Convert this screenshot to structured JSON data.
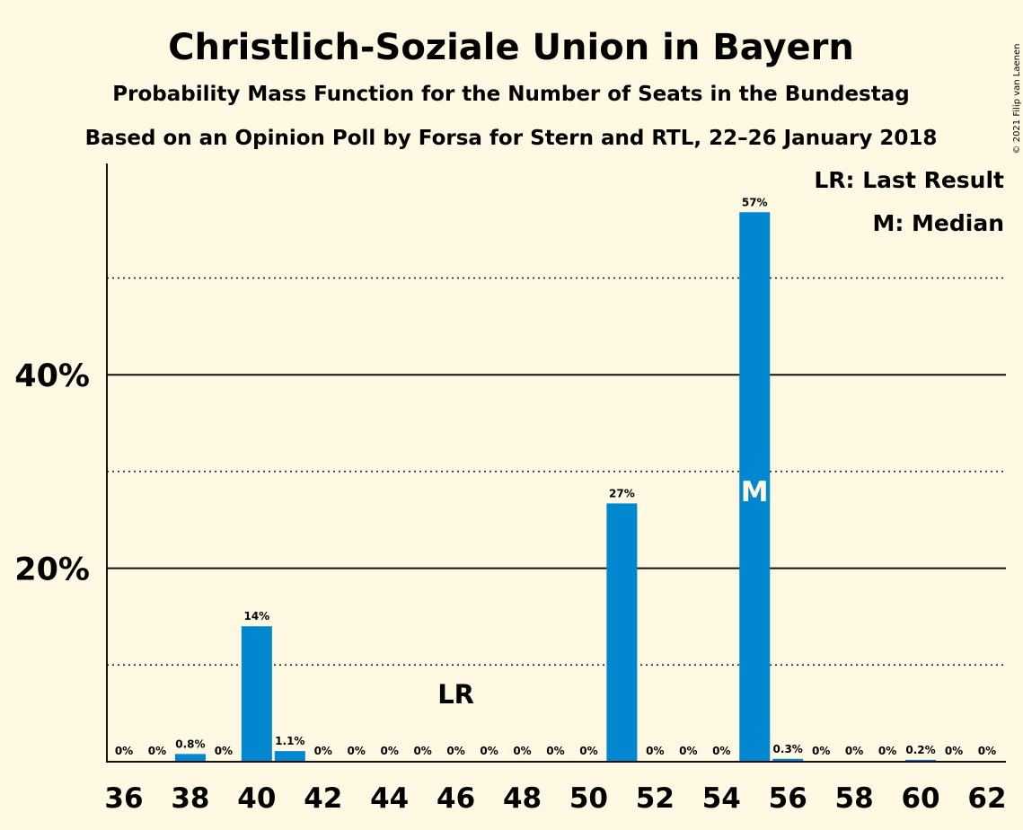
{
  "header": {
    "title": "Christlich-Soziale Union in Bayern",
    "subtitle1": "Probability Mass Function for the Number of Seats in the Bundestag",
    "subtitle2": "Based on an Opinion Poll by Forsa for Stern and RTL, 22–26 January 2018"
  },
  "legend": {
    "last_result": "LR: Last Result",
    "median": "M: Median"
  },
  "copyright": "© 2021 Filip van Laenen",
  "colors": {
    "background": "#fff8e2",
    "bar": "#0087d0",
    "text": "#111111"
  },
  "chart_data": {
    "type": "bar",
    "xlabel": "",
    "ylabel": "",
    "ylim": [
      0,
      62
    ],
    "y_ticks": [
      20,
      40
    ],
    "y_tick_labels": [
      "20%",
      "40%"
    ],
    "y_dotted_lines": [
      10,
      30,
      50
    ],
    "x_tick_labels": [
      "36",
      "38",
      "40",
      "42",
      "44",
      "46",
      "48",
      "50",
      "52",
      "54",
      "56",
      "58",
      "60",
      "62"
    ],
    "categories": [
      36,
      37,
      38,
      39,
      40,
      41,
      42,
      43,
      44,
      45,
      46,
      47,
      48,
      49,
      50,
      51,
      52,
      53,
      54,
      55,
      56,
      57,
      58,
      59,
      60,
      61,
      62
    ],
    "values": [
      0,
      0,
      0.8,
      0,
      14,
      1.1,
      0,
      0,
      0,
      0,
      0,
      0,
      0,
      0,
      0,
      26.7,
      0,
      0,
      0,
      56.8,
      0.3,
      0,
      0,
      0,
      0.2,
      0,
      0
    ],
    "labels": [
      "0%",
      "0%",
      "0.8%",
      "0%",
      "14%",
      "1.1%",
      "0%",
      "0%",
      "0%",
      "0%",
      "0%",
      "0%",
      "0%",
      "0%",
      "0%",
      "27%",
      "0%",
      "0%",
      "0%",
      "57%",
      "0.3%",
      "0%",
      "0%",
      "0%",
      "0.2%",
      "0%",
      "0%"
    ],
    "last_result": 46,
    "last_result_label": "LR",
    "median": 55,
    "median_label": "M"
  }
}
